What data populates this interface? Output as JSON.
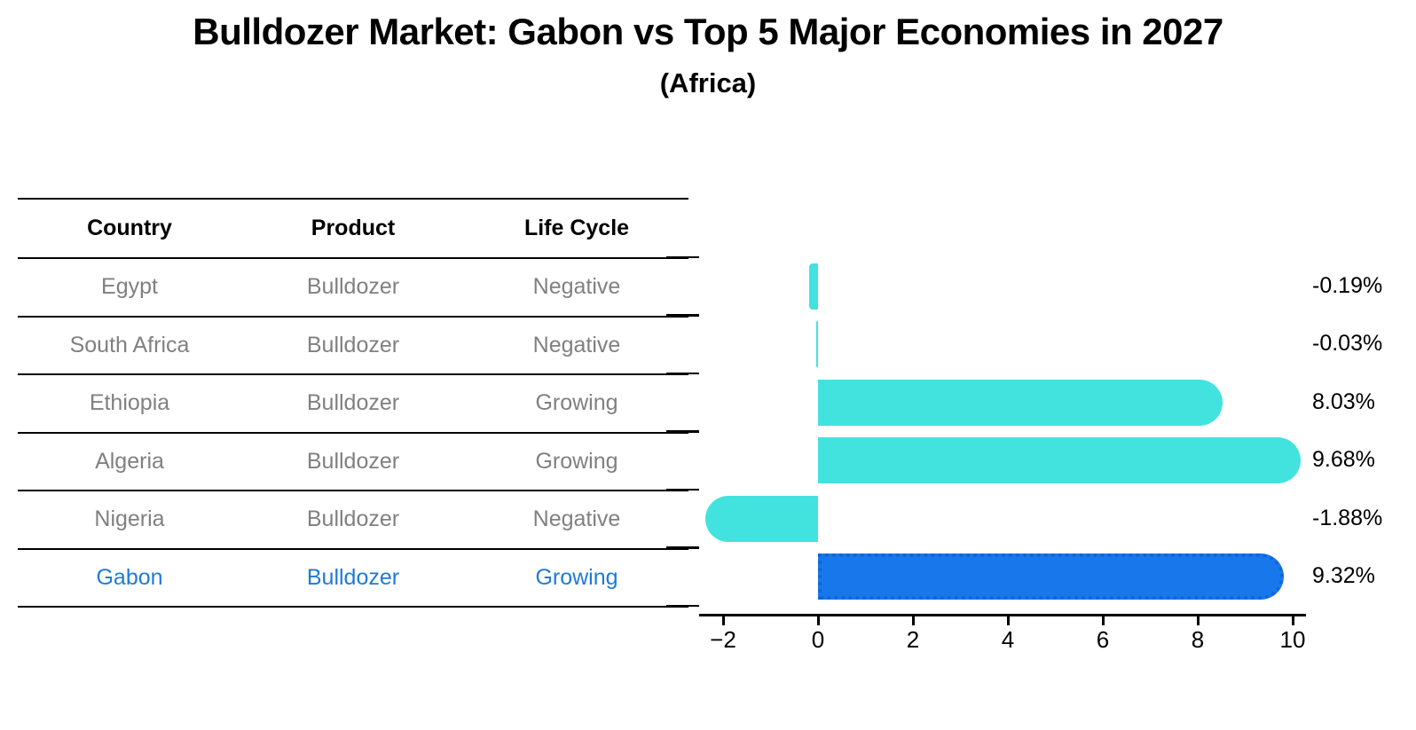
{
  "title": "Bulldozer Market: Gabon vs Top 5 Major Economies in 2027",
  "subtitle": "(Africa)",
  "table": {
    "columns": [
      "Country",
      "Product",
      "Life Cycle"
    ],
    "rows": [
      {
        "country": "Egypt",
        "product": "Bulldozer",
        "life_cycle": "Negative",
        "highlight": false
      },
      {
        "country": "South Africa",
        "product": "Bulldozer",
        "life_cycle": "Negative",
        "highlight": false
      },
      {
        "country": "Ethiopia",
        "product": "Bulldozer",
        "life_cycle": "Growing",
        "highlight": false
      },
      {
        "country": "Algeria",
        "product": "Bulldozer",
        "life_cycle": "Growing",
        "highlight": false
      },
      {
        "country": "Nigeria",
        "product": "Bulldozer",
        "life_cycle": "Negative",
        "highlight": false
      },
      {
        "country": "Gabon",
        "product": "Bulldozer",
        "life_cycle": "Growing",
        "highlight": true
      }
    ]
  },
  "chart_data": {
    "type": "bar",
    "orientation": "horizontal",
    "title": "Bulldozer Market: Gabon vs Top 5 Major Economies in 2027",
    "subtitle": "(Africa)",
    "categories": [
      "Egypt",
      "South Africa",
      "Ethiopia",
      "Algeria",
      "Nigeria",
      "Gabon"
    ],
    "values": [
      -0.19,
      -0.03,
      8.03,
      9.68,
      -1.88,
      9.32
    ],
    "value_labels": [
      "-0.19%",
      "-0.03%",
      "8.03%",
      "9.68%",
      "-1.88%",
      "9.32%"
    ],
    "units": "percent",
    "highlight_index": 5,
    "xlim": [
      -2.5,
      10.3
    ],
    "x_tick_values": [
      -2,
      0,
      2,
      4,
      6,
      8,
      10
    ],
    "x_tick_labels": [
      "−2",
      "0",
      "2",
      "4",
      "6",
      "8",
      "10"
    ],
    "grid": false,
    "legend": false
  },
  "colors": {
    "bar": "#42e3df",
    "highlight_bar": "#1877eb",
    "highlight_bar_edge": "#0f66d8",
    "highlight_text": "#1f7ad8",
    "table_text": "#808080",
    "header_text": "#000000",
    "axis": "#000000"
  }
}
